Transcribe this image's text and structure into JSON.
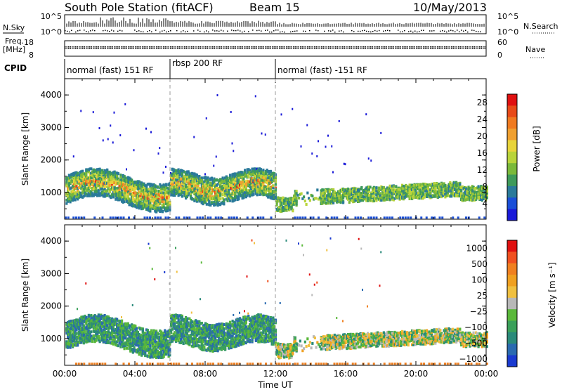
{
  "header": {
    "station": "South Pole Station (fitACF)",
    "beam": "Beam 15",
    "date": "10/May/2013"
  },
  "top_panels": {
    "nsky_label": "N.Sky",
    "nsky_ticks": [
      "10^5",
      "10^0"
    ],
    "nsearch_label": "N.Search",
    "nsearch_ticks": [
      "10^5",
      "10^0"
    ],
    "freq_label_1": "Freq.",
    "freq_label_2": "[MHz]",
    "freq_ticks": [
      "18",
      "8"
    ],
    "nave_label": "Nave",
    "nave_ticks": [
      "60",
      "0"
    ],
    "cpid_label": "CPID",
    "cpid_segments": [
      {
        "label": "normal (fast) 151 RF",
        "start_hour": 0
      },
      {
        "label": "rbsp 200 RF",
        "start_hour": 6
      },
      {
        "label": "normal (fast) -151 RF",
        "start_hour": 12
      }
    ]
  },
  "chart_data": [
    {
      "type": "heatmap",
      "quantity": "Power",
      "xlabel": "Time UT",
      "ylabel": "Slant Range [km]",
      "xlim_hours": [
        0,
        24
      ],
      "ylim_km": [
        180,
        4500
      ],
      "x_tick_labels": [
        "00:00",
        "04:00",
        "08:00",
        "12:00",
        "16:00",
        "20:00",
        "00:00"
      ],
      "y_tick_labels": [
        "1000",
        "2000",
        "3000",
        "4000"
      ],
      "colorbar": {
        "label": "Power [dB]",
        "tick_labels": [
          "4",
          "8",
          "12",
          "16",
          "20",
          "24",
          "28"
        ],
        "range": [
          0,
          30
        ],
        "colors": [
          "#1a1ad8",
          "#1a4fd8",
          "#2a7a9a",
          "#3e9a5a",
          "#7ab93a",
          "#b9d43a",
          "#e8d43a",
          "#f0a030",
          "#f07a20",
          "#e84a18",
          "#e01010"
        ]
      }
    },
    {
      "type": "heatmap",
      "quantity": "Velocity",
      "xlabel": "Time UT",
      "ylabel": "Slant Range [km]",
      "xlim_hours": [
        0,
        24
      ],
      "ylim_km": [
        180,
        4500
      ],
      "x_tick_labels": [
        "00:00",
        "04:00",
        "08:00",
        "12:00",
        "16:00",
        "20:00",
        "00:00"
      ],
      "y_tick_labels": [
        "1000",
        "2000",
        "3000",
        "4000"
      ],
      "colorbar": {
        "label": "Velocity [m s⁻¹]",
        "tick_labels": [
          "1000",
          "500",
          "100",
          "25",
          "−25",
          "−100",
          "−500",
          "−1000"
        ],
        "colors": [
          "#1a3ad0",
          "#2a6ab0",
          "#2a8a7a",
          "#3aa05a",
          "#5ab83a",
          "#b8b8b8",
          "#f0c040",
          "#f0a020",
          "#f08020",
          "#f05020",
          "#e01010"
        ]
      }
    }
  ]
}
